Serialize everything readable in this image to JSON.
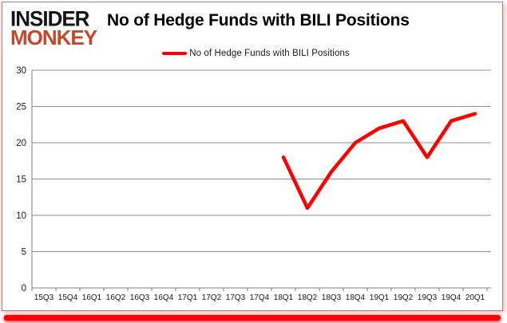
{
  "header": {
    "logo_line1": "INSIDER",
    "logo_line2": "MONKEY",
    "title": "No of Hedge Funds with BILI Positions"
  },
  "legend": {
    "label": "No of Hedge Funds with BILI Positions"
  },
  "colors": {
    "line": "#FF0000",
    "logo_accent": "#C8472B",
    "accent_bar": "#FF0000",
    "grid": "#909090",
    "axis": "#808080",
    "tick_text": "#1a1a1a"
  },
  "chart_data": {
    "type": "line",
    "title": "No of Hedge Funds with BILI Positions",
    "categories": [
      "15Q3",
      "15Q4",
      "16Q1",
      "16Q2",
      "16Q3",
      "16Q4",
      "17Q1",
      "17Q2",
      "17Q3",
      "17Q4",
      "18Q1",
      "18Q2",
      "18Q3",
      "18Q4",
      "19Q1",
      "19Q2",
      "19Q3",
      "19Q4",
      "20Q1"
    ],
    "series": [
      {
        "name": "No of Hedge Funds with BILI Positions",
        "color": "#FF0000",
        "values": [
          null,
          null,
          null,
          null,
          null,
          null,
          null,
          null,
          null,
          null,
          18,
          11,
          16,
          20,
          22,
          23,
          18,
          23,
          24
        ]
      }
    ],
    "xlabel": "",
    "ylabel": "",
    "ylim": [
      0,
      30
    ],
    "yticks": [
      0,
      5,
      10,
      15,
      20,
      25,
      30
    ],
    "grid": true,
    "legend_position": "top"
  }
}
